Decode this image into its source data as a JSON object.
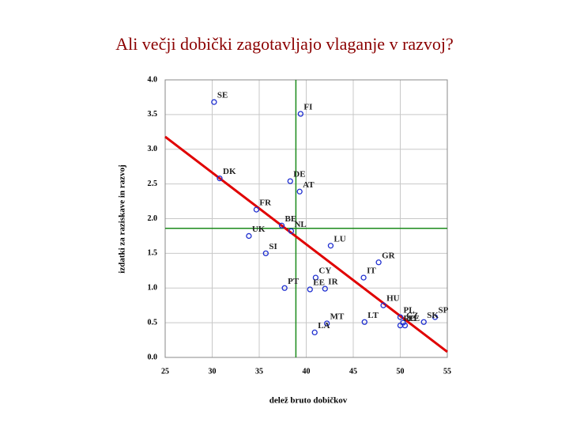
{
  "chart_data": {
    "type": "scatter",
    "title": "Ali večji dobički zagotavljajo vlaganje v razvoj?",
    "x_label": "delež bruto dobičkov",
    "y_label": "izdatki za raziskave in razvoj",
    "series": [
      {
        "color": "#1f2fd0",
        "labels": [
          "SE",
          "FI",
          "DK",
          "DE",
          "AT",
          "FR",
          "BE",
          "NL",
          "UK",
          "SI",
          "LU",
          "CY",
          "GR",
          "IT",
          "PT",
          "EE",
          "IR",
          "HU",
          "PL",
          "SP",
          "CZ",
          "SK",
          "LT",
          "MT",
          "RO",
          "EE",
          "LA"
        ],
        "x": [
          30.2,
          39.4,
          30.8,
          38.3,
          39.3,
          34.7,
          37.4,
          38.4,
          33.9,
          35.7,
          42.6,
          41.0,
          47.7,
          46.1,
          37.7,
          40.4,
          42.0,
          48.2,
          50.0,
          53.7,
          50.3,
          52.5,
          46.2,
          42.2,
          50.0,
          50.5,
          40.9
        ],
        "values": [
          3.68,
          3.51,
          2.58,
          2.54,
          2.39,
          2.13,
          1.9,
          1.82,
          1.75,
          1.5,
          1.61,
          1.15,
          1.37,
          1.15,
          1.0,
          0.98,
          0.99,
          0.75,
          0.58,
          0.58,
          0.5,
          0.51,
          0.51,
          0.49,
          0.46,
          0.46,
          0.36
        ]
      }
    ],
    "trend": {
      "color": "#e00000",
      "x": [
        25,
        55
      ],
      "values": [
        3.18,
        0.08
      ]
    },
    "reference_lines": {
      "color": "#1a8a1a",
      "x": 38.9,
      "y": 1.86
    },
    "xlim": [
      25,
      55
    ],
    "xticks": [
      25,
      30,
      35,
      40,
      45,
      50,
      55
    ],
    "ylim": [
      0,
      4
    ],
    "yticks": [
      {
        "value": 0,
        "label": "0.0"
      },
      {
        "value": 0.5,
        "label": "0.5"
      },
      {
        "value": 1,
        "label": "1.0"
      },
      {
        "value": 1.5,
        "label": "1.5"
      },
      {
        "value": 2,
        "label": "2.0"
      },
      {
        "value": 2.5,
        "label": "2.5"
      },
      {
        "value": 3,
        "label": "3.0"
      },
      {
        "value": 3.5,
        "label": "3.5"
      },
      {
        "value": 4,
        "label": "4.0"
      }
    ],
    "grid": true
  }
}
